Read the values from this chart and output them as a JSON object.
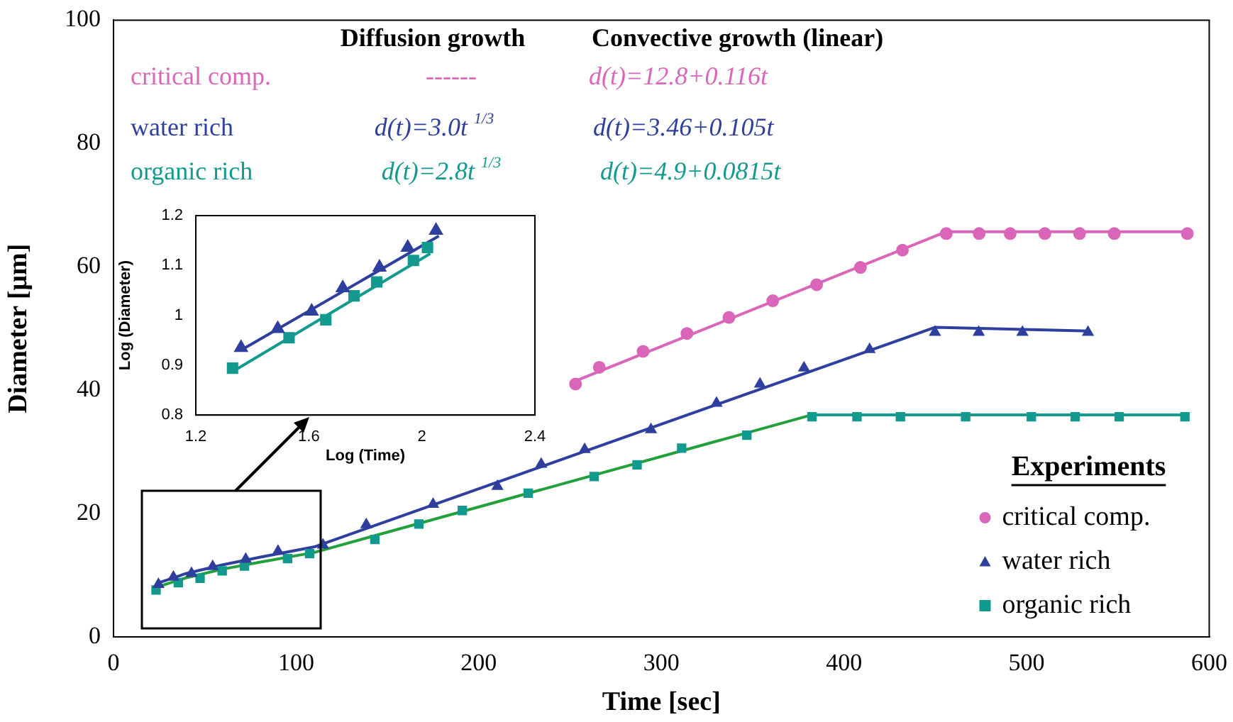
{
  "chart_data": [
    {
      "type": "scatter",
      "xlabel": "Time [sec]",
      "ylabel": "Diameter [μm]",
      "xlim": [
        0,
        600
      ],
      "xticks": [
        0,
        100,
        200,
        300,
        400,
        500,
        600
      ],
      "ylim": [
        0,
        100
      ],
      "yticks": [
        0,
        20,
        40,
        60,
        80,
        100
      ],
      "grid": false,
      "legend": "bottom right",
      "legend_title": "Experiments",
      "annotations": [
        "Diffusion growth",
        "Convective growth (linear)",
        "critical comp.",
        "------",
        "d(t)=12.8+0.116t",
        "water rich",
        "d(t)=3.0t $^{1/3}$",
        "d(t)=3.46+0.105t",
        "organic rich",
        "d(t)=2.8t $^{1/3}$",
        "d(t)=4.9+0.0815t"
      ],
      "series": [
        {
          "name": "critical comp.",
          "type": "scatter",
          "marker": "circle",
          "color": "#d966b8",
          "x": [
            253,
            266,
            290,
            314,
            337,
            361,
            385,
            409,
            432,
            456,
            474,
            491,
            510,
            529,
            548,
            588
          ],
          "values": [
            41.0,
            43.7,
            46.3,
            49.2,
            51.8,
            54.5,
            57.1,
            59.9,
            62.7,
            65.4,
            65.4,
            65.4,
            65.4,
            65.4,
            65.4,
            65.4
          ]
        },
        {
          "name": "water rich",
          "type": "scatter",
          "marker": "triangle",
          "color": "#2e3f9e",
          "x": [
            24.6,
            32.8,
            42.7,
            54.3,
            72.4,
            90.1,
            114.7,
            138.4,
            175,
            210.2,
            234.2,
            258,
            294.3,
            330.2,
            354,
            378.1,
            414,
            449.8,
            473.8,
            497.7,
            533.6
          ],
          "values": [
            8.5,
            9.7,
            10.3,
            11.4,
            12.6,
            13.9,
            14.9,
            18.2,
            21.5,
            24.4,
            28.0,
            30.4,
            33.6,
            37.9,
            41.0,
            43.6,
            46.6,
            49.4,
            49.4,
            49.4,
            49.4
          ]
        },
        {
          "name": "organic rich",
          "type": "scatter",
          "marker": "square",
          "color": "#139a8e",
          "x": [
            23.3,
            35.5,
            47.4,
            59.5,
            71.7,
            95.3,
            107.4,
            143.1,
            167.2,
            191,
            227.1,
            263.2,
            286.7,
            311.1,
            346.8,
            382.5,
            407.1,
            430.9,
            466.6,
            502.6,
            526.6,
            550.7,
            586.7
          ],
          "values": [
            7.6,
            8.8,
            9.5,
            10.7,
            11.5,
            12.7,
            13.5,
            15.8,
            18.3,
            20.5,
            23.3,
            26.0,
            27.9,
            30.6,
            32.7,
            35.7,
            35.7,
            35.7,
            35.7,
            35.7,
            35.7,
            35.7,
            35.7
          ]
        },
        {
          "type": "line",
          "marker": "none",
          "color": "#d966b8",
          "x": [
            253,
            456,
            588
          ],
          "values": [
            41.5,
            65.7,
            65.7
          ]
        },
        {
          "type": "line",
          "marker": "none",
          "color": "#2e3f9e",
          "x": [
            24,
            40,
            60,
            80,
            110,
            450,
            533.6
          ],
          "values": [
            8.7,
            10.3,
            11.7,
            12.9,
            14.6,
            50.2,
            49.6
          ]
        },
        {
          "type": "line",
          "marker": "none",
          "color": "#22a03c",
          "x": [
            23,
            40,
            60,
            80,
            110,
            382.5
          ],
          "values": [
            8.0,
            9.6,
            11.0,
            12.1,
            13.7,
            36.0
          ]
        },
        {
          "type": "line",
          "marker": "none",
          "color": "#139a8e",
          "x": [
            382.5,
            586.7
          ],
          "values": [
            36.0,
            36.0
          ]
        }
      ]
    },
    {
      "type": "scatter",
      "xlabel": "Log (Time)",
      "ylabel": "Log (Diameter)",
      "xlim": [
        1.2,
        2.4
      ],
      "xticks": [
        1.2,
        1.6,
        2,
        2.4
      ],
      "ylim": [
        0.8,
        1.2
      ],
      "yticks": [
        0.8,
        0.9,
        1,
        1.1,
        1.2
      ],
      "grid": false,
      "legend": false,
      "series": [
        {
          "type": "scatter",
          "marker": "triangle",
          "color": "#2e3f9e",
          "x": [
            1.36,
            1.49,
            1.61,
            1.72,
            1.85,
            1.95,
            2.05
          ],
          "values": [
            0.935,
            0.973,
            1.008,
            1.055,
            1.096,
            1.136,
            1.17
          ]
        },
        {
          "type": "scatter",
          "marker": "square",
          "color": "#139a8e",
          "x": [
            1.33,
            1.53,
            1.66,
            1.76,
            1.84,
            1.97,
            2.02
          ],
          "values": [
            0.894,
            0.955,
            0.991,
            1.039,
            1.067,
            1.11,
            1.136
          ]
        },
        {
          "type": "line",
          "marker": "none",
          "color": "#2e3f9e",
          "x": [
            1.36,
            2.06
          ],
          "values": [
            0.93,
            1.159
          ]
        },
        {
          "type": "line",
          "marker": "none",
          "color": "#139a8e",
          "x": [
            1.33,
            2.03
          ],
          "values": [
            0.887,
            1.124
          ]
        }
      ]
    }
  ]
}
